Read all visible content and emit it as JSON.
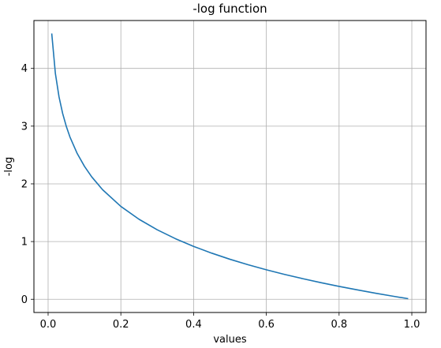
{
  "chart_data": {
    "type": "line",
    "title": "-log function",
    "xlabel": "values",
    "ylabel": "-log",
    "xlim": [
      -0.039,
      1.039
    ],
    "ylim": [
      -0.229,
      4.83
    ],
    "grid": true,
    "x_ticks": [
      0.0,
      0.2,
      0.4,
      0.6,
      0.8,
      1.0
    ],
    "x_tick_labels": [
      "0.0",
      "0.2",
      "0.4",
      "0.6",
      "0.8",
      "1.0"
    ],
    "y_ticks": [
      0,
      1,
      2,
      3,
      4
    ],
    "y_tick_labels": [
      "0",
      "1",
      "2",
      "3",
      "4"
    ],
    "series": [
      {
        "color": "#1f77b4",
        "x": [
          0.01,
          0.02,
          0.03,
          0.04,
          0.05,
          0.06,
          0.08,
          0.1,
          0.12,
          0.15,
          0.2,
          0.25,
          0.3,
          0.35,
          0.4,
          0.45,
          0.5,
          0.55,
          0.6,
          0.65,
          0.7,
          0.75,
          0.8,
          0.85,
          0.9,
          0.95,
          0.99
        ],
        "y": [
          4.605,
          3.912,
          3.507,
          3.219,
          2.996,
          2.813,
          2.526,
          2.303,
          2.12,
          1.897,
          1.609,
          1.386,
          1.204,
          1.05,
          0.916,
          0.799,
          0.693,
          0.598,
          0.511,
          0.431,
          0.357,
          0.288,
          0.223,
          0.163,
          0.105,
          0.051,
          0.01
        ]
      }
    ]
  }
}
